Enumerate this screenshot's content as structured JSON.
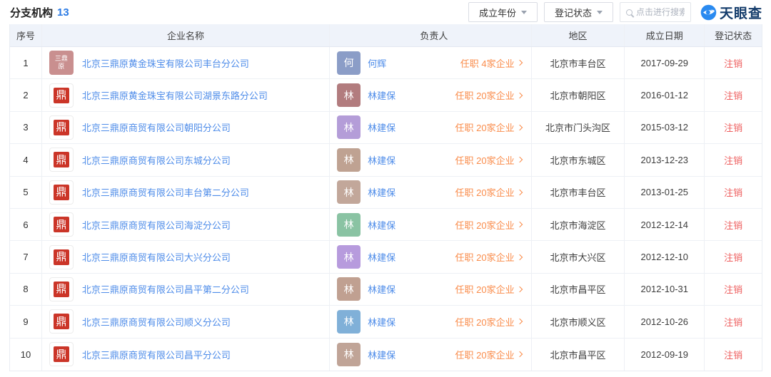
{
  "header": {
    "title": "分支机构",
    "count": "13"
  },
  "toolbar": {
    "year_filter_label": "成立年份",
    "status_filter_label": "登记状态",
    "search_placeholder": "点击进行搜索",
    "brand": "天眼查",
    "brand_color": "#2a8af0"
  },
  "table": {
    "columns": [
      "序号",
      "企业名称",
      "负责人",
      "地区",
      "成立日期",
      "登记状态"
    ],
    "seal_glyph": "鼎",
    "rows": [
      {
        "index": "1",
        "company": "北京三鼎原黄金珠宝有限公司丰台分公司",
        "logo": {
          "type": "text",
          "lines": [
            "三鼎",
            "原"
          ],
          "bg": "#c98f8f"
        },
        "person": {
          "initial": "何",
          "name": "何辉",
          "color": "#8b9dc7"
        },
        "positions_label": "任职 4家企业",
        "region": "北京市丰台区",
        "date": "2017-09-29",
        "status": "注销"
      },
      {
        "index": "2",
        "company": "北京三鼎原黄金珠宝有限公司湖景东路分公司",
        "logo": {
          "type": "seal"
        },
        "person": {
          "initial": "林",
          "name": "林建保",
          "color": "#b27c7e"
        },
        "positions_label": "任职 20家企业",
        "region": "北京市朝阳区",
        "date": "2016-01-12",
        "status": "注销"
      },
      {
        "index": "3",
        "company": "北京三鼎原商贸有限公司朝阳分公司",
        "logo": {
          "type": "seal"
        },
        "person": {
          "initial": "林",
          "name": "林建保",
          "color": "#b49dd8"
        },
        "positions_label": "任职 20家企业",
        "region": "北京市门头沟区",
        "date": "2015-03-12",
        "status": "注销"
      },
      {
        "index": "4",
        "company": "北京三鼎原商贸有限公司东城分公司",
        "logo": {
          "type": "seal"
        },
        "person": {
          "initial": "林",
          "name": "林建保",
          "color": "#bfa292"
        },
        "positions_label": "任职 20家企业",
        "region": "北京市东城区",
        "date": "2013-12-23",
        "status": "注销"
      },
      {
        "index": "5",
        "company": "北京三鼎原商贸有限公司丰台第二分公司",
        "logo": {
          "type": "seal"
        },
        "person": {
          "initial": "林",
          "name": "林建保",
          "color": "#c2a79a"
        },
        "positions_label": "任职 20家企业",
        "region": "北京市丰台区",
        "date": "2013-01-25",
        "status": "注销"
      },
      {
        "index": "6",
        "company": "北京三鼎原商贸有限公司海淀分公司",
        "logo": {
          "type": "seal"
        },
        "person": {
          "initial": "林",
          "name": "林建保",
          "color": "#8ac3a3"
        },
        "positions_label": "任职 20家企业",
        "region": "北京市海淀区",
        "date": "2012-12-14",
        "status": "注销"
      },
      {
        "index": "7",
        "company": "北京三鼎原商贸有限公司大兴分公司",
        "logo": {
          "type": "seal"
        },
        "person": {
          "initial": "林",
          "name": "林建保",
          "color": "#b79bdd"
        },
        "positions_label": "任职 20家企业",
        "region": "北京市大兴区",
        "date": "2012-12-10",
        "status": "注销"
      },
      {
        "index": "8",
        "company": "北京三鼎原商贸有限公司昌平第二分公司",
        "logo": {
          "type": "seal"
        },
        "person": {
          "initial": "林",
          "name": "林建保",
          "color": "#c0a091"
        },
        "positions_label": "任职 20家企业",
        "region": "北京市昌平区",
        "date": "2012-10-31",
        "status": "注销"
      },
      {
        "index": "9",
        "company": "北京三鼎原商贸有限公司顺义分公司",
        "logo": {
          "type": "seal"
        },
        "person": {
          "initial": "林",
          "name": "林建保",
          "color": "#80b0d8"
        },
        "positions_label": "任职 20家企业",
        "region": "北京市顺义区",
        "date": "2012-10-26",
        "status": "注销"
      },
      {
        "index": "10",
        "company": "北京三鼎原商贸有限公司昌平分公司",
        "logo": {
          "type": "seal"
        },
        "person": {
          "initial": "林",
          "name": "林建保",
          "color": "#c0a497"
        },
        "positions_label": "任职 20家企业",
        "region": "北京市昌平区",
        "date": "2012-09-19",
        "status": "注销"
      }
    ]
  }
}
